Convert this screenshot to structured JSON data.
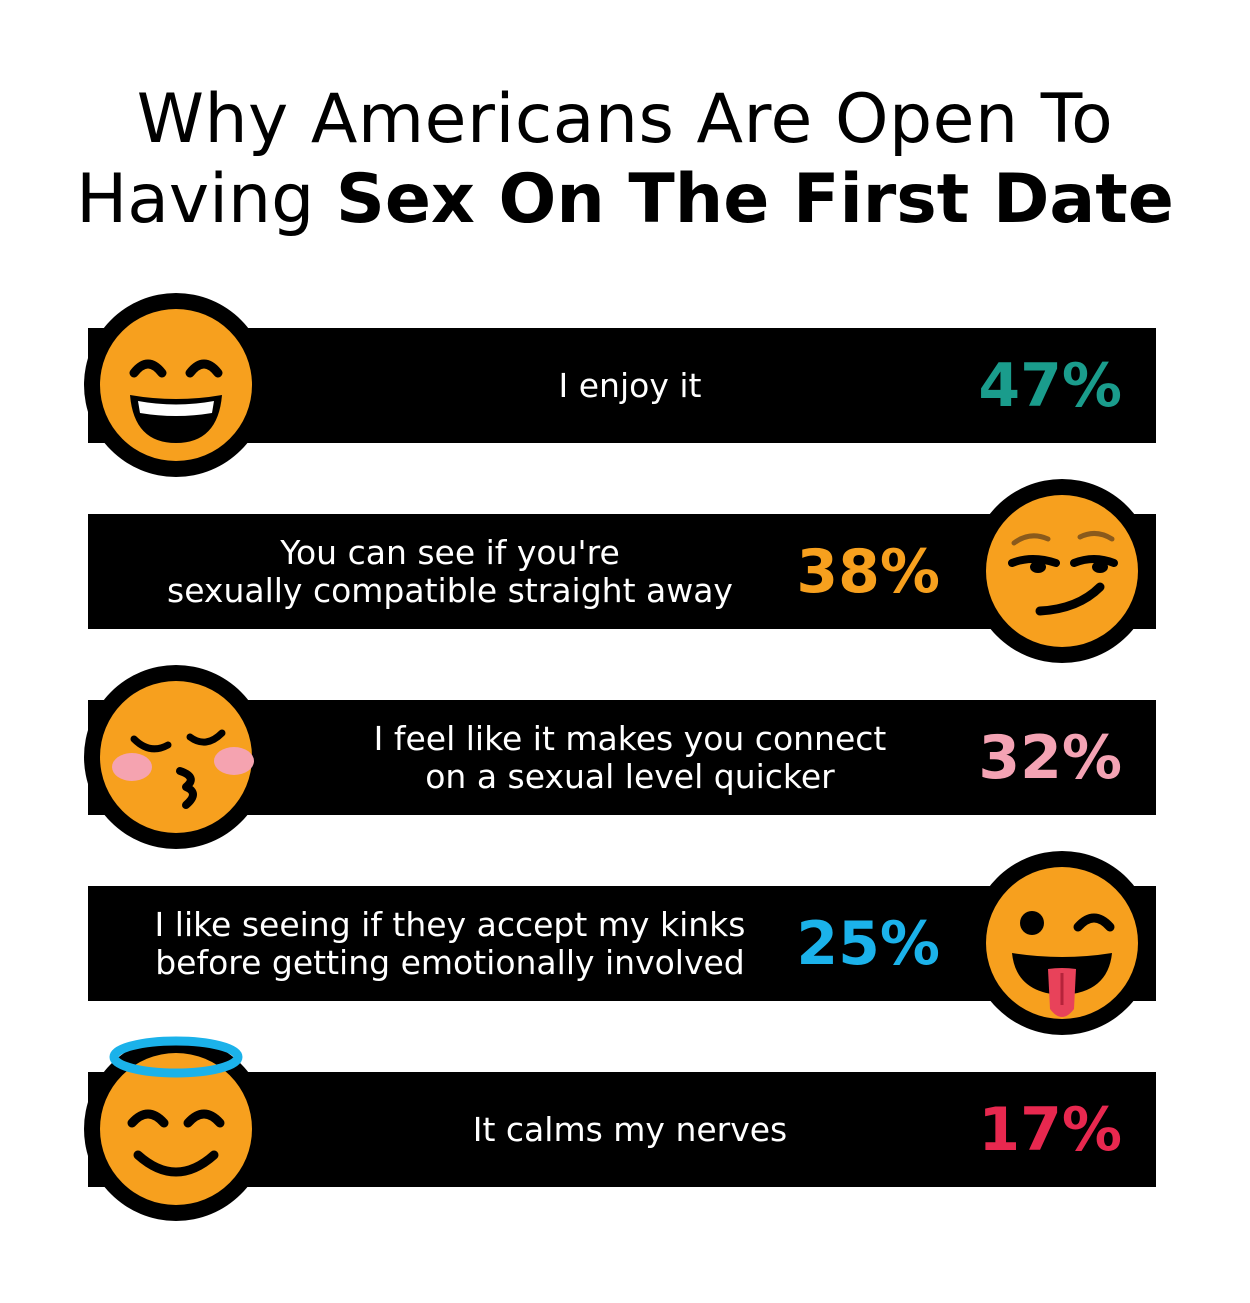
{
  "title_line1": "Why Americans Are Open To",
  "title_line2_prefix": "Having",
  "title_line2_bold": "Sex On The First Date",
  "chart_data": {
    "type": "bar",
    "title": "Why Americans Are Open To Having Sex On The First Date",
    "unit": "%",
    "categories": [
      "I enjoy it",
      "You can see if you're sexually compatible straight away",
      "I feel like it makes you connect on a sexual level quicker",
      "I like seeing if they accept my kinks before getting emotionally involved",
      "It calms my nerves"
    ],
    "values": [
      47,
      38,
      32,
      25,
      17
    ],
    "labels": [
      "47%",
      "38%",
      "32%",
      "25%",
      "17%"
    ],
    "colors": [
      "#1a9c8c",
      "#f7a01e",
      "#f4a3b4",
      "#1bb2ea",
      "#e8284f"
    ],
    "emojis": [
      "grinning-squinting-face-icon",
      "smirking-face-icon",
      "kissing-face-icon",
      "winking-tongue-face-icon",
      "smiling-halo-face-icon"
    ]
  },
  "rows": [
    {
      "label_lines": [
        "I enjoy it"
      ],
      "pct": "47%"
    },
    {
      "label_lines": [
        "You can see if you're",
        "sexually compatible straight away"
      ],
      "pct": "38%"
    },
    {
      "label_lines": [
        "I feel like it makes you connect",
        "on a sexual level quicker"
      ],
      "pct": "32%"
    },
    {
      "label_lines": [
        "I like seeing if they accept my kinks",
        "before getting emotionally involved"
      ],
      "pct": "25%"
    },
    {
      "label_lines": [
        "It calms my nerves"
      ],
      "pct": "17%"
    }
  ]
}
